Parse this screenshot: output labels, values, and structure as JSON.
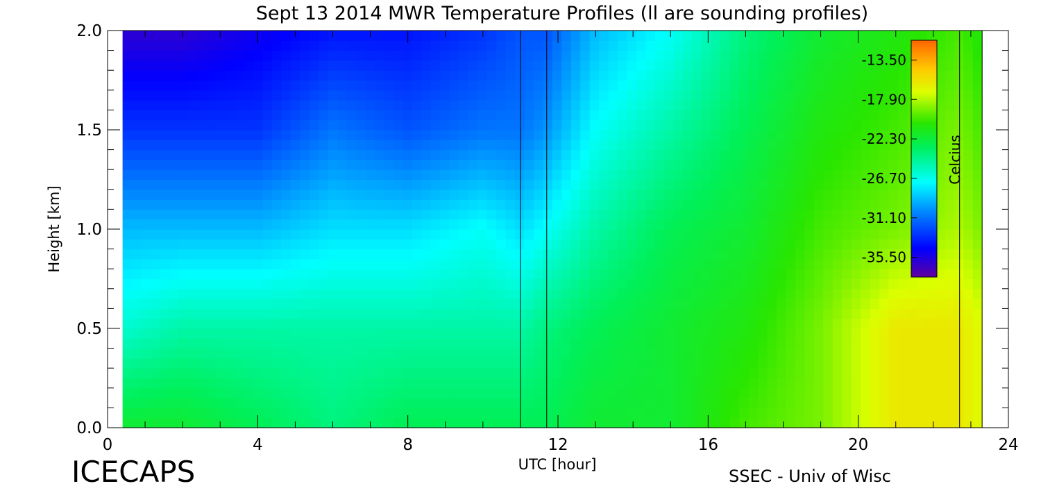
{
  "chart_data": {
    "type": "heatmap",
    "title": "Sept 13 2014 MWR Temperature Profiles (ll are sounding profiles)",
    "xlabel": "UTC [hour]",
    "ylabel": "Height [km]",
    "xlim": [
      0,
      24
    ],
    "ylim": [
      0,
      2.0
    ],
    "x_ticks": [
      "0",
      "4",
      "8",
      "12",
      "16",
      "20",
      "24"
    ],
    "y_ticks": [
      "0.0",
      "0.5",
      "1.0",
      "1.5",
      "2.0"
    ],
    "data_x_range": [
      0.4,
      23.3
    ],
    "sounding_profiles_hour": [
      11.0,
      11.7,
      22.7,
      23.3
    ],
    "colorbar": {
      "label": "Celcius",
      "min": -37.7,
      "max": -11.3,
      "ticks": [
        "-13.50",
        "-17.90",
        "-22.30",
        "-26.70",
        "-31.10",
        "-35.50"
      ]
    },
    "temperature_grid": {
      "hours": [
        0.4,
        2,
        4,
        6,
        8,
        10,
        11,
        11.7,
        13,
        15,
        17,
        19,
        21,
        22.7,
        23.3
      ],
      "heights_km": [
        0.0,
        0.5,
        1.0,
        1.5,
        2.0
      ],
      "values_celsius": [
        [
          -22,
          -22,
          -23,
          -24,
          -23,
          -23,
          -23,
          -23,
          -22,
          -22,
          -20,
          -19,
          -16,
          -16,
          -17
        ],
        [
          -26,
          -25,
          -25,
          -25,
          -25,
          -25,
          -25,
          -24,
          -23,
          -22,
          -21,
          -19,
          -16,
          -16,
          -17
        ],
        [
          -29,
          -29,
          -29,
          -28,
          -28,
          -27,
          -28,
          -27,
          -25,
          -23,
          -22,
          -20,
          -19,
          -18,
          -19
        ],
        [
          -33,
          -33,
          -33,
          -31,
          -32,
          -31,
          -31,
          -30,
          -27,
          -25,
          -23,
          -21,
          -20,
          -19,
          -20
        ],
        [
          -36,
          -36,
          -35,
          -34,
          -34,
          -33,
          -32,
          -32,
          -29,
          -27,
          -24,
          -22,
          -21,
          -20,
          -21
        ]
      ]
    }
  },
  "footer": {
    "left": "ICECAPS",
    "right": "SSEC - Univ of Wisc"
  }
}
